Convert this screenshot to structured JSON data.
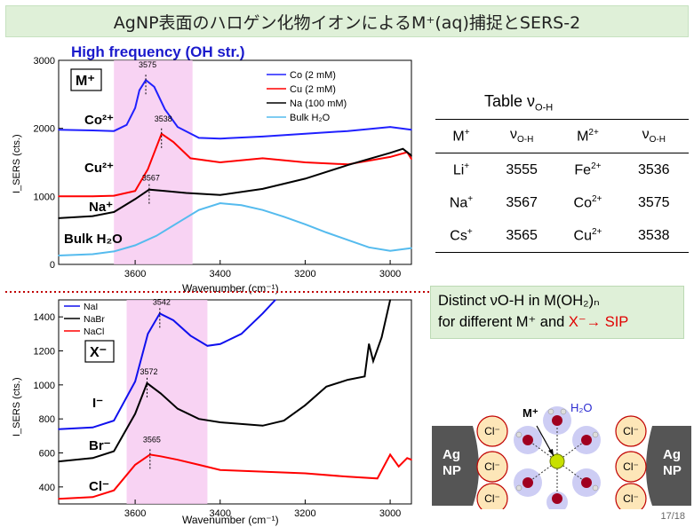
{
  "title": "AgNP表面のハロゲン化物イオンによるM⁺(aq)捕捉とSERS-2",
  "colors": {
    "title_bg": "#dff0d8",
    "co": "#2020ff",
    "cu": "#ff0000",
    "na": "#000000",
    "bulk": "#55bbee",
    "highlight": "#f6c8f0",
    "divider": "#c00000"
  },
  "top_plot": {
    "heading": "High frequency (OH str.)",
    "box_label": "M⁺",
    "ylabel": "I_SERS (cts.)",
    "xlabel": "Wavenumber (cm⁻¹)",
    "yticks": [
      "0",
      "1000",
      "2000",
      "3000"
    ],
    "xticks": [
      "3600",
      "3400",
      "3200",
      "3000"
    ],
    "legend": [
      "Co (2 mM)",
      "Cu (2 mM)",
      "Na (100 mM)",
      "Bulk H₂O"
    ],
    "curve_labels": [
      "Co²⁺",
      "Cu²⁺",
      "Na⁺",
      "Bulk H₂O"
    ],
    "peak_labels": [
      "3575",
      "3538",
      "3567"
    ]
  },
  "bottom_plot": {
    "box_label": "X⁻",
    "ylabel": "I_SERS (cts.)",
    "xlabel": "Wavenumber (cm⁻¹)",
    "yticks": [
      "400",
      "600",
      "800",
      "1000",
      "1200",
      "1400"
    ],
    "xticks": [
      "3600",
      "3400",
      "3200",
      "3000"
    ],
    "legend": [
      "NaI",
      "NaBr",
      "NaCl"
    ],
    "curve_labels": [
      "I⁻",
      "Br⁻",
      "Cl⁻"
    ],
    "peak_labels": [
      "3542",
      "3572",
      "3565"
    ]
  },
  "chart_data": [
    {
      "type": "line",
      "title": "High frequency (OH str.)",
      "xlabel": "Wavenumber (cm-1)",
      "ylabel": "ISERS(cts.)",
      "xlim": [
        3780,
        2950
      ],
      "ylim": [
        0,
        3000
      ],
      "highlight_band": [
        3650,
        3465
      ],
      "series": [
        {
          "name": "Co (2 mM)",
          "x": [
            3780,
            3700,
            3650,
            3620,
            3600,
            3590,
            3575,
            3555,
            3530,
            3500,
            3450,
            3400,
            3300,
            3200,
            3100,
            3000,
            2950
          ],
          "y": [
            1980,
            1970,
            1960,
            2050,
            2300,
            2560,
            2710,
            2610,
            2280,
            2020,
            1860,
            1850,
            1880,
            1920,
            1960,
            2020,
            1980
          ]
        },
        {
          "name": "Cu (2 mM)",
          "x": [
            3780,
            3700,
            3650,
            3600,
            3570,
            3538,
            3510,
            3470,
            3400,
            3300,
            3200,
            3100,
            3000,
            2960,
            2950
          ],
          "y": [
            1000,
            1000,
            1010,
            1080,
            1400,
            1920,
            1800,
            1560,
            1500,
            1560,
            1500,
            1470,
            1580,
            1650,
            1550
          ]
        },
        {
          "name": "Na (100 mM)",
          "x": [
            3780,
            3700,
            3650,
            3600,
            3567,
            3530,
            3480,
            3400,
            3300,
            3200,
            3100,
            3000,
            2970,
            2950
          ],
          "y": [
            680,
            710,
            770,
            960,
            1100,
            1080,
            1050,
            1020,
            1110,
            1260,
            1460,
            1640,
            1700,
            1600
          ]
        },
        {
          "name": "Bulk H2O",
          "x": [
            3780,
            3700,
            3650,
            3600,
            3550,
            3500,
            3450,
            3400,
            3350,
            3300,
            3250,
            3200,
            3150,
            3100,
            3050,
            3000,
            2950
          ],
          "y": [
            130,
            150,
            190,
            280,
            420,
            610,
            800,
            900,
            870,
            800,
            700,
            590,
            470,
            360,
            250,
            200,
            240
          ]
        }
      ],
      "annotations": [
        "3575",
        "3538",
        "3567",
        "Co2+",
        "Cu2+",
        "Na+",
        "Bulk H2O"
      ]
    },
    {
      "type": "line",
      "xlabel": "Wavenumber (cm-1)",
      "ylabel": "ISERS(cts.)",
      "xlim": [
        3780,
        2950
      ],
      "ylim": [
        300,
        1500
      ],
      "highlight_band": [
        3620,
        3430
      ],
      "series": [
        {
          "name": "NaI",
          "x": [
            3780,
            3700,
            3650,
            3600,
            3570,
            3542,
            3510,
            3470,
            3430,
            3400,
            3350,
            3300,
            3270
          ],
          "y": [
            740,
            750,
            790,
            1020,
            1300,
            1420,
            1380,
            1290,
            1230,
            1240,
            1300,
            1420,
            1500
          ]
        },
        {
          "name": "NaBr",
          "x": [
            3780,
            3700,
            3650,
            3600,
            3572,
            3540,
            3500,
            3450,
            3400,
            3300,
            3250,
            3200,
            3150,
            3100,
            3060,
            3050,
            3040,
            3020,
            3000
          ],
          "y": [
            550,
            570,
            610,
            830,
            1010,
            950,
            860,
            800,
            780,
            760,
            790,
            880,
            990,
            1030,
            1050,
            1240,
            1140,
            1280,
            1500
          ]
        },
        {
          "name": "NaCl",
          "x": [
            3780,
            3700,
            3650,
            3600,
            3565,
            3540,
            3500,
            3450,
            3400,
            3300,
            3200,
            3100,
            3030,
            3000,
            2980,
            2960,
            2950
          ],
          "y": [
            330,
            340,
            380,
            530,
            590,
            580,
            560,
            530,
            500,
            490,
            480,
            460,
            450,
            590,
            520,
            570,
            560
          ]
        }
      ],
      "annotations": [
        "3542",
        "3572",
        "3565",
        "I-",
        "Br-",
        "Cl-"
      ]
    }
  ],
  "table": {
    "caption_main": "Table ν",
    "caption_sub": "O-H",
    "header": [
      {
        "base": "M",
        "sup": "+",
        "sub": ""
      },
      {
        "base": "ν",
        "sup": "",
        "sub": "O-H"
      },
      {
        "base": "M",
        "sup": "2+",
        "sub": ""
      },
      {
        "base": "ν",
        "sup": "",
        "sub": "O-H"
      }
    ],
    "rows": [
      [
        {
          "base": "Li",
          "sup": "+"
        },
        {
          "base": "3555",
          "sup": ""
        },
        {
          "base": "Fe",
          "sup": "2+"
        },
        {
          "base": "3536",
          "sup": ""
        }
      ],
      [
        {
          "base": "Na",
          "sup": "+"
        },
        {
          "base": "3567",
          "sup": ""
        },
        {
          "base": "Co",
          "sup": "2+"
        },
        {
          "base": "3575",
          "sup": ""
        }
      ],
      [
        {
          "base": "Cs",
          "sup": "+"
        },
        {
          "base": "3565",
          "sup": ""
        },
        {
          "base": "Cu",
          "sup": "2+"
        },
        {
          "base": "3538",
          "sup": ""
        }
      ]
    ]
  },
  "note": {
    "line1": "Distinct νO-H in M(OH₂)ₙ",
    "line2_black": "for different M⁺ and ",
    "line2_red": "X⁻→ SIP"
  },
  "diagram": {
    "cation_label": "M⁺",
    "water_label": "H₂O",
    "electrode_label": "Ag NP",
    "anion_label": "Cl⁻"
  },
  "page_number": "17/18"
}
